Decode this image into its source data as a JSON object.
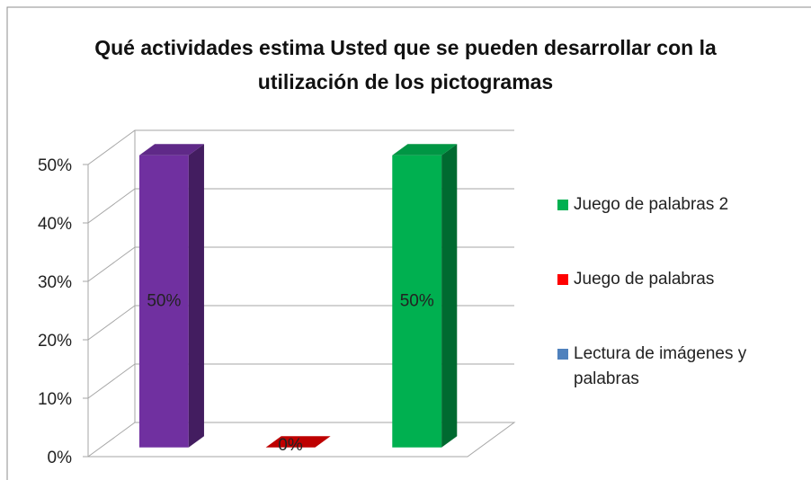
{
  "chart_data": {
    "type": "bar3d",
    "title": "Qué actividades estima Usted que se pueden desarrollar con la utilización de los pictogramas",
    "series": [
      {
        "name": "Lectura de imágenes y palabras",
        "color": "#7030a0",
        "legend_color": "#4f81bd",
        "values": [
          50
        ],
        "value_labels": [
          "50%"
        ]
      },
      {
        "name": "Juego de palabras",
        "color": "#e00000",
        "legend_color": "#ff0000",
        "values": [
          0
        ],
        "value_labels": [
          "0%"
        ]
      },
      {
        "name": "Juego de palabras 2",
        "color": "#00b050",
        "legend_color": "#00b050",
        "values": [
          50
        ],
        "value_labels": [
          "50%"
        ]
      }
    ],
    "ylim": [
      0,
      50
    ],
    "yticks": [
      {
        "value": 0,
        "label": "0%"
      },
      {
        "value": 10,
        "label": "10%"
      },
      {
        "value": 20,
        "label": "20%"
      },
      {
        "value": 30,
        "label": "30%"
      },
      {
        "value": 40,
        "label": "40%"
      },
      {
        "value": 50,
        "label": "50%"
      }
    ],
    "grid": true,
    "legend": "right"
  }
}
